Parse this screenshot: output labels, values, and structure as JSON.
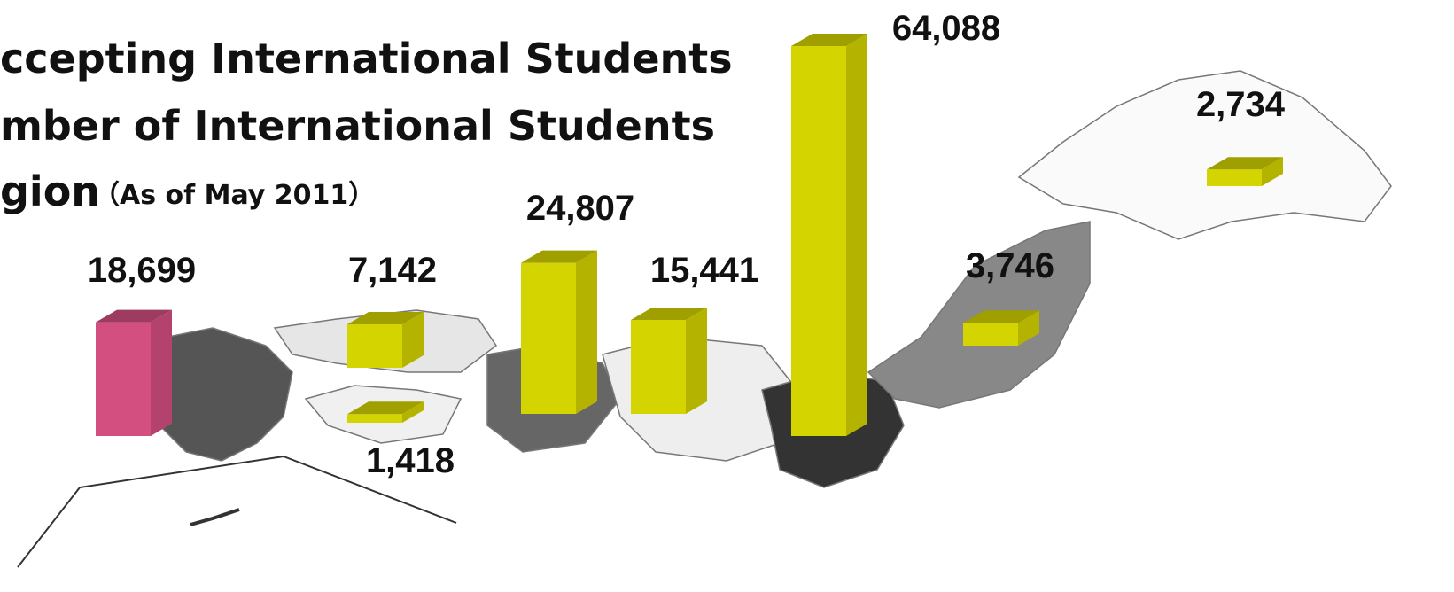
{
  "map": {
    "title_lines": [
      "ccepting International Students",
      "mber of International Students",
      "gion"
    ],
    "subtitle": "（As of May 2011）",
    "values": [
      18699,
      7142,
      1418,
      24807,
      15441,
      64088,
      3746,
      2734
    ],
    "value_labels": [
      "18,699",
      "7,142",
      "1,418",
      "24,807",
      "15,441",
      "64,088",
      "3,746",
      "2,734"
    ],
    "colors": [
      "#d24f80",
      "#d4d400",
      "#d4d400",
      "#d4d400",
      "#d4d400",
      "#d4d400",
      "#d4d400",
      "#d4d400"
    ]
  }
}
